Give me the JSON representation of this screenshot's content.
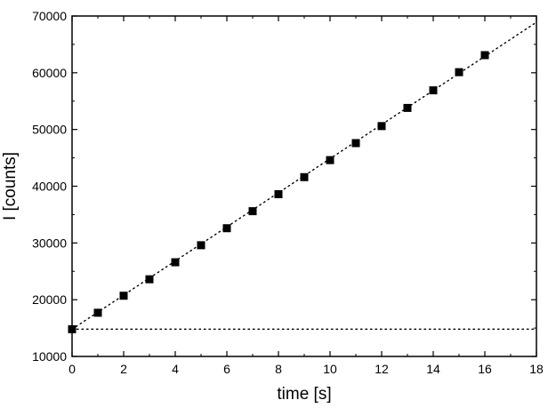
{
  "chart_data": {
    "type": "scatter",
    "xlabel": "time [s]",
    "ylabel": "I [counts]",
    "xlim": [
      0,
      18
    ],
    "ylim": [
      10000,
      70000
    ],
    "xticks": [
      0,
      2,
      4,
      6,
      8,
      10,
      12,
      14,
      16,
      18
    ],
    "yticks": [
      10000,
      20000,
      30000,
      40000,
      50000,
      60000,
      70000
    ],
    "grid": false,
    "series": [
      {
        "marker": "square",
        "color": "#000000",
        "x": [
          0,
          1,
          2,
          3,
          4,
          5,
          6,
          7,
          8,
          9,
          10,
          11,
          12,
          13,
          14,
          15,
          16
        ],
        "y": [
          14800,
          17700,
          20700,
          23600,
          26600,
          29600,
          32600,
          35600,
          38600,
          41600,
          44600,
          47600,
          50600,
          53800,
          56900,
          60100,
          63100
        ]
      }
    ],
    "lines": [
      {
        "style": "dotted",
        "color": "#000000",
        "x": [
          0,
          18
        ],
        "y": [
          14800,
          68900
        ]
      },
      {
        "style": "dotted",
        "color": "#000000",
        "x": [
          0,
          18
        ],
        "y": [
          14800,
          14800
        ]
      }
    ]
  }
}
